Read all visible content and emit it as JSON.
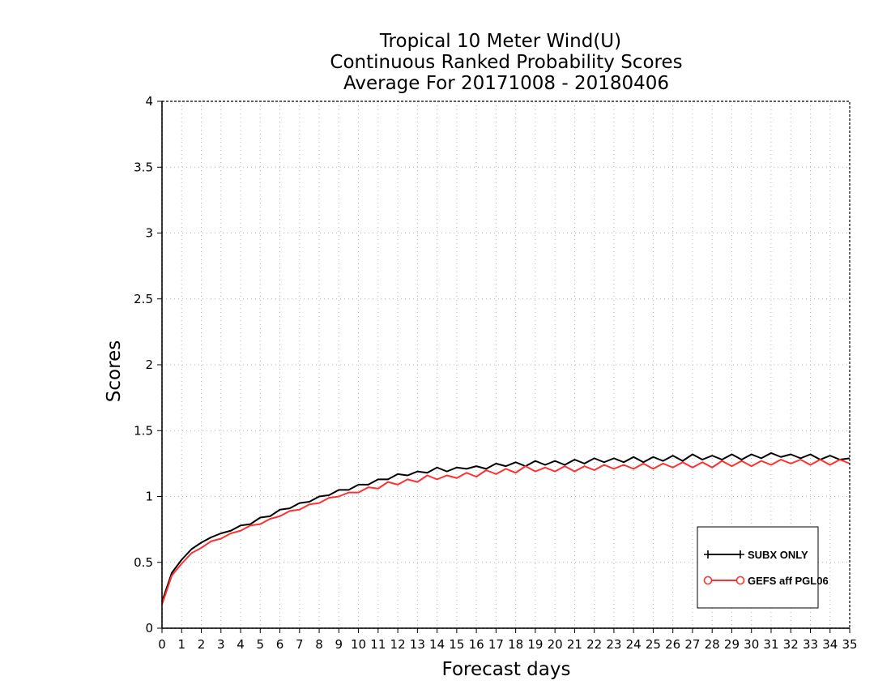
{
  "chart_data": {
    "type": "line",
    "title": [
      "Tropical 10 Meter Wind(U)",
      "Continuous Ranked Probability Scores",
      "Average For 20171008 - 20180406"
    ],
    "xlabel": "Forecast days",
    "ylabel": "Scores",
    "xlim": [
      0,
      35
    ],
    "ylim": [
      0,
      4
    ],
    "xticks": [
      0,
      1,
      2,
      3,
      4,
      5,
      6,
      7,
      8,
      9,
      10,
      11,
      12,
      13,
      14,
      15,
      16,
      17,
      18,
      19,
      20,
      21,
      22,
      23,
      24,
      25,
      26,
      27,
      28,
      29,
      30,
      31,
      32,
      33,
      34,
      35
    ],
    "yticks": [
      0,
      0.5,
      1,
      1.5,
      2,
      2.5,
      3,
      3.5,
      4
    ],
    "ytick_labels": [
      "0",
      "0.5",
      "1",
      "1.5",
      "2",
      "2.5",
      "3",
      "3.5",
      "4"
    ],
    "grid": true,
    "legend_position": "bottom-right",
    "x": [
      0,
      0.5,
      1,
      1.5,
      2,
      2.5,
      3,
      3.5,
      4,
      4.5,
      5,
      5.5,
      6,
      6.5,
      7,
      7.5,
      8,
      8.5,
      9,
      9.5,
      10,
      10.5,
      11,
      11.5,
      12,
      12.5,
      13,
      13.5,
      14,
      14.5,
      15,
      15.5,
      16,
      16.5,
      17,
      17.5,
      18,
      18.5,
      19,
      19.5,
      20,
      20.5,
      21,
      21.5,
      22,
      22.5,
      23,
      23.5,
      24,
      24.5,
      25,
      25.5,
      26,
      26.5,
      27,
      27.5,
      28,
      28.5,
      29,
      29.5,
      30,
      30.5,
      31,
      31.5,
      32,
      32.5,
      33,
      33.5,
      34,
      34.5,
      35
    ],
    "series": [
      {
        "name": "SUBX ONLY",
        "color": "#000000",
        "marker": "plus",
        "values": [
          0.2,
          0.42,
          0.52,
          0.6,
          0.65,
          0.69,
          0.72,
          0.74,
          0.78,
          0.79,
          0.84,
          0.85,
          0.9,
          0.91,
          0.95,
          0.96,
          1.0,
          1.01,
          1.05,
          1.05,
          1.09,
          1.09,
          1.13,
          1.13,
          1.17,
          1.16,
          1.19,
          1.18,
          1.22,
          1.19,
          1.22,
          1.21,
          1.23,
          1.21,
          1.25,
          1.23,
          1.26,
          1.23,
          1.27,
          1.24,
          1.27,
          1.24,
          1.28,
          1.25,
          1.29,
          1.26,
          1.29,
          1.26,
          1.3,
          1.26,
          1.3,
          1.27,
          1.31,
          1.27,
          1.32,
          1.28,
          1.31,
          1.28,
          1.32,
          1.28,
          1.32,
          1.29,
          1.33,
          1.3,
          1.32,
          1.29,
          1.32,
          1.28,
          1.31,
          1.28,
          1.29
        ]
      },
      {
        "name": "GEFS aff PGL06",
        "color": "#ff3030",
        "marker": "circle",
        "values": [
          0.18,
          0.4,
          0.49,
          0.57,
          0.61,
          0.66,
          0.68,
          0.72,
          0.74,
          0.78,
          0.79,
          0.83,
          0.85,
          0.89,
          0.9,
          0.94,
          0.95,
          0.99,
          1.0,
          1.03,
          1.03,
          1.07,
          1.06,
          1.11,
          1.09,
          1.13,
          1.11,
          1.16,
          1.13,
          1.16,
          1.14,
          1.18,
          1.15,
          1.2,
          1.17,
          1.21,
          1.18,
          1.23,
          1.19,
          1.22,
          1.19,
          1.23,
          1.19,
          1.23,
          1.2,
          1.24,
          1.21,
          1.24,
          1.21,
          1.25,
          1.21,
          1.25,
          1.22,
          1.26,
          1.22,
          1.26,
          1.22,
          1.27,
          1.23,
          1.27,
          1.23,
          1.27,
          1.24,
          1.28,
          1.25,
          1.28,
          1.24,
          1.28,
          1.24,
          1.28,
          1.25
        ]
      }
    ]
  }
}
